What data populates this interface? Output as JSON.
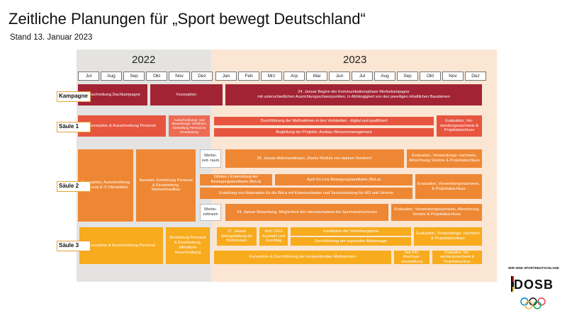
{
  "title": "Zeitliche Planungen für „Sport bewegt Deutschland“",
  "subtitle": "Stand 13. Januar 2023",
  "years": {
    "y2022": "2022",
    "y2023": "2023"
  },
  "months2022": [
    "Jul",
    "Aug",
    "Sep",
    "Okt",
    "Nov",
    "Dez"
  ],
  "months2023": [
    "Jan",
    "Feb",
    "Mrz",
    "Arp",
    "Mai",
    "Jun",
    "Jul",
    "Aug",
    "Sep",
    "Okt",
    "Nov",
    "Dez"
  ],
  "rows": {
    "kampagne": "Kampagne",
    "saeule1": "Säule 1",
    "saeule2": "Säule 2",
    "saeule3": "Säule 3"
  },
  "bars": {
    "k1": "Ausschreibung Dachkampagne",
    "k2": "Konzeption",
    "k3a": "24. Januar Beginn der Kommunikationsphase Werbekampagne",
    "k3b": "mit unterschiedlichen Ausrichtungsschwerpunkten, in Abhängigkeit von den jeweiligen inhaltlichen Bausteinen",
    "s1a": "Konzeption & Ausschreibung Personal",
    "s1b": "Ausschreibungs- und Bewerbungs- verfahren, Einstellung Personal & Einarbeitung",
    "s1c": "Durchführung der Maßnahmen in den Verbänden - digital und qualifiziert",
    "s1d": "Begleitung der Projekte, Ausbau Wissensmanagement",
    "s1e": "Evaluation, Ver- wendungsnachweis & Projektabschluss",
    "s2a": "Konzeption, Ausschreibung Personal & IT-Dienstleiter",
    "s2b": "Auswahl, Einstellung Personal & Einarbeitung, Netzwerkaufbau",
    "s2c": "Werbe- zeit- raum",
    "s2d": "26. Januar Aktionszeitraum „Starke Module von starken Vereinen“",
    "s2e": "Evaluation, Verwendungs- nachweis, Abrechnung Vereine & Projektabschluss",
    "s2f": "(Weiter-) Entwicklung der Bewegungslandkarte (BeLa)",
    "s2g": "April Go Live Bewegungslandkarte (BeLa)",
    "s2h": "Erstellung von Materialien für die BeLa mit Kommunikation und Serviceleistung für MO und Vereine",
    "s2i": "Evaluation, Verwendungsnachweis, & Projektabschluss",
    "s2j": "Werbe- zeitraum",
    "s2k": "24. Januar Bewerbung, Möglichkeit des Herunterladens der Sportvereinschecks",
    "s2l": "Evaluation, Verwendungsnachweis, Abrechnung Vereine & Projektabschluss",
    "s3a": "Konzeption & Ausschreibung Personal",
    "s3b": "Einstellung Personal & Einarbeitung, öffentliche Ausschreibung",
    "s3c": "17. Januar Antragstellung für Kommunen",
    "s3d": "April 2023 Auswahl und Zuschlag",
    "s3e": "Installation der Verleihangebote",
    "s3f": "Durchführung der regionalen Aktionstage",
    "s3g": "Evaluation, Verwendungs- nachweis & Projektabschluss",
    "s3h": "Konzeption & Durchführung der vorbereitenden Maßnahmen",
    "s3i": "Sep./Okt. Abschluss- veranstaltung",
    "s3j": "Evaluation, Ver- wendungsnachweis & Projektabschluss"
  },
  "logo": {
    "tagline": "WIR SIND SPORTDEUTSCHLAND",
    "word": "DOSB"
  },
  "colors": {
    "dark": "#a22334",
    "red": "#e7553f",
    "orange": "#ee8733",
    "yellow": "#f7ab1d",
    "panel2022": "#e4e3e1",
    "panel2023": "#fbe5d3"
  }
}
